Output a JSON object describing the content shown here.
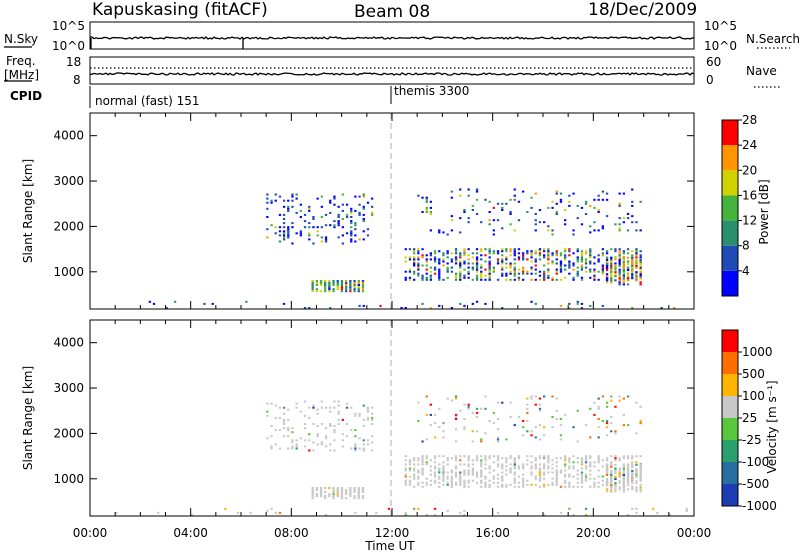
{
  "header": {
    "station": "Kapuskasing (fitACF)",
    "beam": "Beam 08",
    "date": "18/Dec/2009"
  },
  "aux_panels": {
    "nsky_label": "N.Sky",
    "nsky_ticks": [
      "10^5",
      "10^0"
    ],
    "nsearch_label": "N.Search",
    "nsearch_ticks": [
      "10^5",
      "10^0"
    ],
    "freq_label_1": "Freq.",
    "freq_label_2": "[MHz]",
    "freq_ticks": [
      "18",
      "8"
    ],
    "nave_label": "Nave",
    "nave_ticks": [
      "60",
      "0"
    ],
    "cpid_label": "CPID",
    "cpid_segments": [
      {
        "label": "normal (fast) 151",
        "start_hour": 0
      },
      {
        "label": "themis 3300",
        "start_hour": 12
      }
    ]
  },
  "chart_data": [
    {
      "type": "heatmap",
      "name": "power",
      "ylabel": "Slant Range [km]",
      "xlabel": "",
      "ylim": [
        180,
        4500
      ],
      "y_ticks": [
        1000,
        2000,
        3000,
        4000
      ],
      "x_ticks": [
        "00:00",
        "04:00",
        "08:00",
        "12:00",
        "16:00",
        "20:00",
        "00:00"
      ],
      "xlim_hours": [
        0,
        24
      ],
      "colorbar": {
        "label": "Power [dB]",
        "ticks": [
          "4",
          "8",
          "12",
          "16",
          "20",
          "24",
          "28"
        ],
        "colors": [
          "#0000ff",
          "#1e4bb4",
          "#2a8f6e",
          "#46b43c",
          "#d2d200",
          "#ff9600",
          "#ff0000"
        ]
      },
      "regions": [
        {
          "t0": 0.0,
          "t1": 24.0,
          "r0": 180,
          "r1": 320,
          "density": 0.08,
          "color_mix": [
            0.3,
            0.3,
            0.2,
            0.1,
            0.05,
            0.03,
            0.02
          ]
        },
        {
          "t0": 7.0,
          "t1": 11.2,
          "r0": 1600,
          "r1": 2700,
          "density": 0.22,
          "color_mix": [
            0.45,
            0.3,
            0.1,
            0.08,
            0.05,
            0.02,
            0.0
          ]
        },
        {
          "t0": 8.8,
          "t1": 10.8,
          "r0": 550,
          "r1": 800,
          "density": 0.9,
          "color_mix": [
            0.05,
            0.15,
            0.25,
            0.2,
            0.2,
            0.1,
            0.05
          ]
        },
        {
          "t0": 12.5,
          "t1": 22.0,
          "r0": 800,
          "r1": 1500,
          "density": 0.55,
          "color_mix": [
            0.35,
            0.15,
            0.12,
            0.12,
            0.14,
            0.08,
            0.04
          ]
        },
        {
          "t0": 13.0,
          "t1": 22.0,
          "r0": 1800,
          "r1": 2800,
          "density": 0.12,
          "color_mix": [
            0.4,
            0.25,
            0.12,
            0.1,
            0.08,
            0.03,
            0.02
          ]
        },
        {
          "t0": 20.5,
          "t1": 22.0,
          "r0": 700,
          "r1": 1300,
          "density": 0.7,
          "color_mix": [
            0.1,
            0.1,
            0.1,
            0.1,
            0.2,
            0.3,
            0.1
          ]
        }
      ]
    },
    {
      "type": "heatmap",
      "name": "velocity",
      "ylabel": "Slant Range [km]",
      "xlabel": "Time UT",
      "ylim": [
        180,
        4500
      ],
      "y_ticks": [
        1000,
        2000,
        3000,
        4000
      ],
      "x_ticks": [
        "00:00",
        "04:00",
        "08:00",
        "12:00",
        "16:00",
        "20:00",
        "00:00"
      ],
      "xlim_hours": [
        0,
        24
      ],
      "colorbar": {
        "label": "Velocity [m s⁻¹]",
        "ticks": [
          "1000",
          "500",
          "100",
          "25",
          "-25",
          "-100",
          "-500",
          "-1000"
        ],
        "colors": [
          "#1e3cb4",
          "#2a6ea0",
          "#2aa06e",
          "#5ac83c",
          "#c8c8c8",
          "#ffb400",
          "#ff6e00",
          "#ff0000"
        ]
      },
      "regions": [
        {
          "t0": 0.0,
          "t1": 24.0,
          "r0": 180,
          "r1": 320,
          "density": 0.06,
          "color_mix": [
            0.02,
            0.02,
            0.03,
            0.05,
            0.8,
            0.04,
            0.02,
            0.02
          ]
        },
        {
          "t0": 7.0,
          "t1": 11.2,
          "r0": 1600,
          "r1": 2700,
          "density": 0.2,
          "color_mix": [
            0.01,
            0.01,
            0.02,
            0.04,
            0.88,
            0.02,
            0.01,
            0.01
          ]
        },
        {
          "t0": 8.8,
          "t1": 10.8,
          "r0": 550,
          "r1": 800,
          "density": 0.85,
          "color_mix": [
            0.0,
            0.0,
            0.0,
            0.02,
            0.96,
            0.02,
            0.0,
            0.0
          ]
        },
        {
          "t0": 12.5,
          "t1": 22.0,
          "r0": 800,
          "r1": 1500,
          "density": 0.55,
          "color_mix": [
            0.005,
            0.005,
            0.01,
            0.02,
            0.94,
            0.01,
            0.005,
            0.005
          ]
        },
        {
          "t0": 13.0,
          "t1": 22.0,
          "r0": 1800,
          "r1": 2800,
          "density": 0.1,
          "color_mix": [
            0.06,
            0.06,
            0.06,
            0.08,
            0.5,
            0.1,
            0.08,
            0.06
          ]
        },
        {
          "t0": 20.5,
          "t1": 22.0,
          "r0": 700,
          "r1": 1300,
          "density": 0.65,
          "color_mix": [
            0.02,
            0.02,
            0.02,
            0.03,
            0.85,
            0.03,
            0.02,
            0.01
          ]
        }
      ]
    }
  ]
}
